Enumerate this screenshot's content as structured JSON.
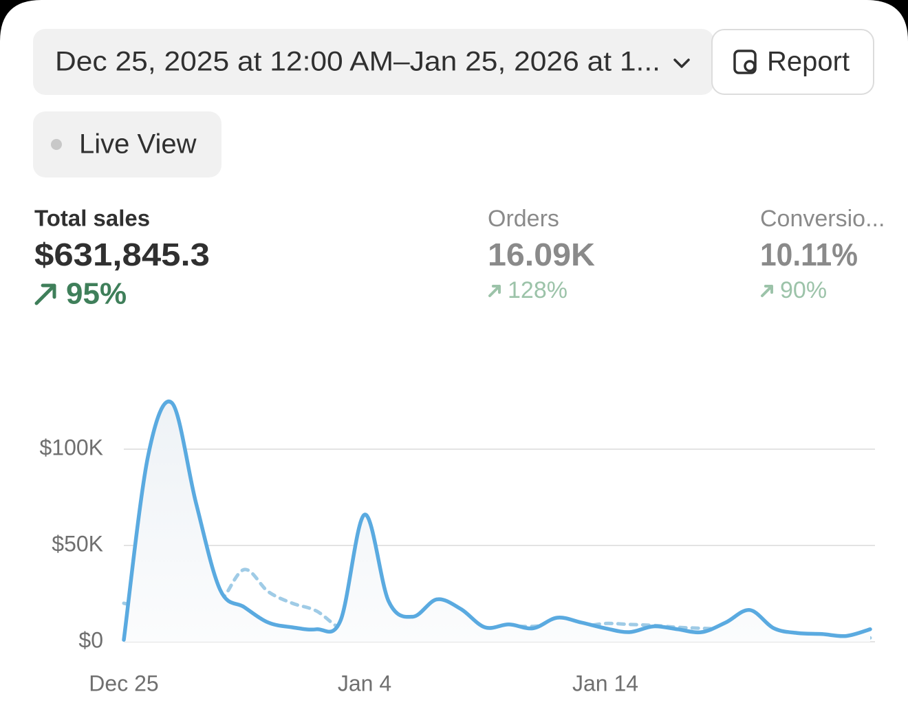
{
  "toolbar": {
    "date_range": "Dec 25, 2025 at 12:00 AM–Jan 25, 2026 at 1...",
    "report": "Report",
    "live_view": "Live View"
  },
  "metrics": [
    {
      "label": "Total sales",
      "value": "$631,845.3",
      "change": "95%"
    },
    {
      "label": "Orders",
      "value": "16.09K",
      "change": "128%"
    },
    {
      "label": "Conversio...",
      "value": "10.11%",
      "change": "90%"
    }
  ],
  "chart_data": {
    "type": "line",
    "categories": [
      "Dec 25",
      null,
      null,
      null,
      null,
      null,
      null,
      null,
      null,
      null,
      "Jan 4",
      null,
      null,
      null,
      null,
      null,
      null,
      null,
      null,
      null,
      "Jan 14",
      null,
      null,
      null,
      null,
      null,
      null,
      null,
      null,
      null,
      null,
      null
    ],
    "series": [
      {
        "color": "#5aaae0",
        "dashed": false,
        "area": true,
        "values": [
          1000,
          96000,
          124000,
          72000,
          27000,
          18000,
          10000,
          7500,
          6500,
          11000,
          66000,
          21000,
          13000,
          22000,
          17000,
          7500,
          9000,
          7000,
          12500,
          10000,
          7000,
          5000,
          8000,
          6500,
          5000,
          10000,
          16500,
          7000,
          4500,
          4000,
          3000,
          6500
        ]
      },
      {
        "color": "#9fcbe6",
        "dashed": true,
        "area": false,
        "values": [
          20000,
          17500,
          17000,
          18000,
          21000,
          37500,
          26000,
          20000,
          16000,
          7000,
          5500,
          5000,
          4500,
          5500,
          6000,
          7000,
          8000,
          8000,
          9000,
          8000,
          9500,
          9000,
          8500,
          7500,
          7000,
          6500,
          5500,
          4000,
          3000,
          2500,
          2000,
          2000
        ]
      }
    ],
    "ylim": [
      0,
      125000
    ],
    "yticks": [
      {
        "value": 0,
        "label": "$0"
      },
      {
        "value": 50000,
        "label": "$50K"
      },
      {
        "value": 100000,
        "label": "$100K"
      }
    ],
    "grid": true
  }
}
